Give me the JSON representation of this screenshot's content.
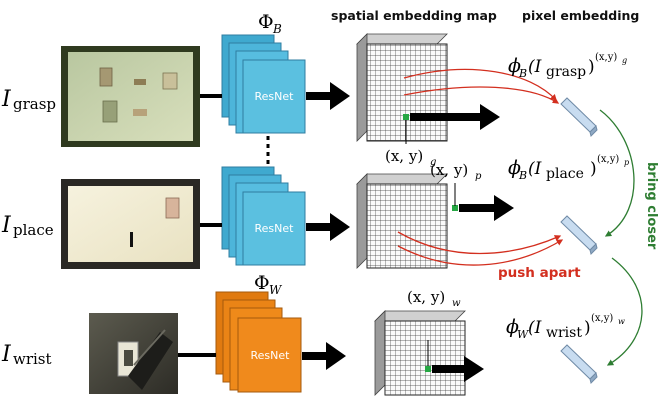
{
  "headers": {
    "phi_b": "Φ",
    "phi_b_sub": "B",
    "spatial_map": "spatial embedding map",
    "pixel_embedding": "pixel embedding"
  },
  "rows": {
    "grasp": {
      "input_main": "I",
      "input_sub": "grasp",
      "coord_main": "(x, y)",
      "coord_sub": "g",
      "emb_func": "ϕ",
      "emb_func_sub": "B",
      "emb_arg": "(I",
      "emb_arg_sub": "grasp",
      "emb_close": ")",
      "emb_sup": "(x,y)",
      "emb_sup_sub": "g"
    },
    "place": {
      "input_main": "I",
      "input_sub": "place",
      "coord_main": "(x, y)",
      "coord_sub": "p",
      "emb_func": "ϕ",
      "emb_func_sub": "B",
      "emb_arg": "(I",
      "emb_arg_sub": "place",
      "emb_close": ")",
      "emb_sup": "(x,y)",
      "emb_sup_sub": "p"
    },
    "wrist": {
      "input_main": "I",
      "input_sub": "wrist",
      "coord_main": "(x, y)",
      "coord_sub": "w",
      "emb_func": "ϕ",
      "emb_func_sub": "W",
      "emb_arg": "(I",
      "emb_arg_sub": "wrist",
      "emb_close": ")",
      "emb_sup": "(x,y)",
      "emb_sup_sub": "w"
    }
  },
  "phi_w": "Φ",
  "phi_w_sub": "W",
  "network_label": "ResNet",
  "bring_closer": "bring closer",
  "push_apart": "push apart",
  "colors": {
    "blue_net": "#5bc0e0",
    "orange_net": "#f08a1c",
    "bring_closer": "#2e7d32",
    "push_apart": "#d32f1f",
    "point": "#27a844"
  }
}
